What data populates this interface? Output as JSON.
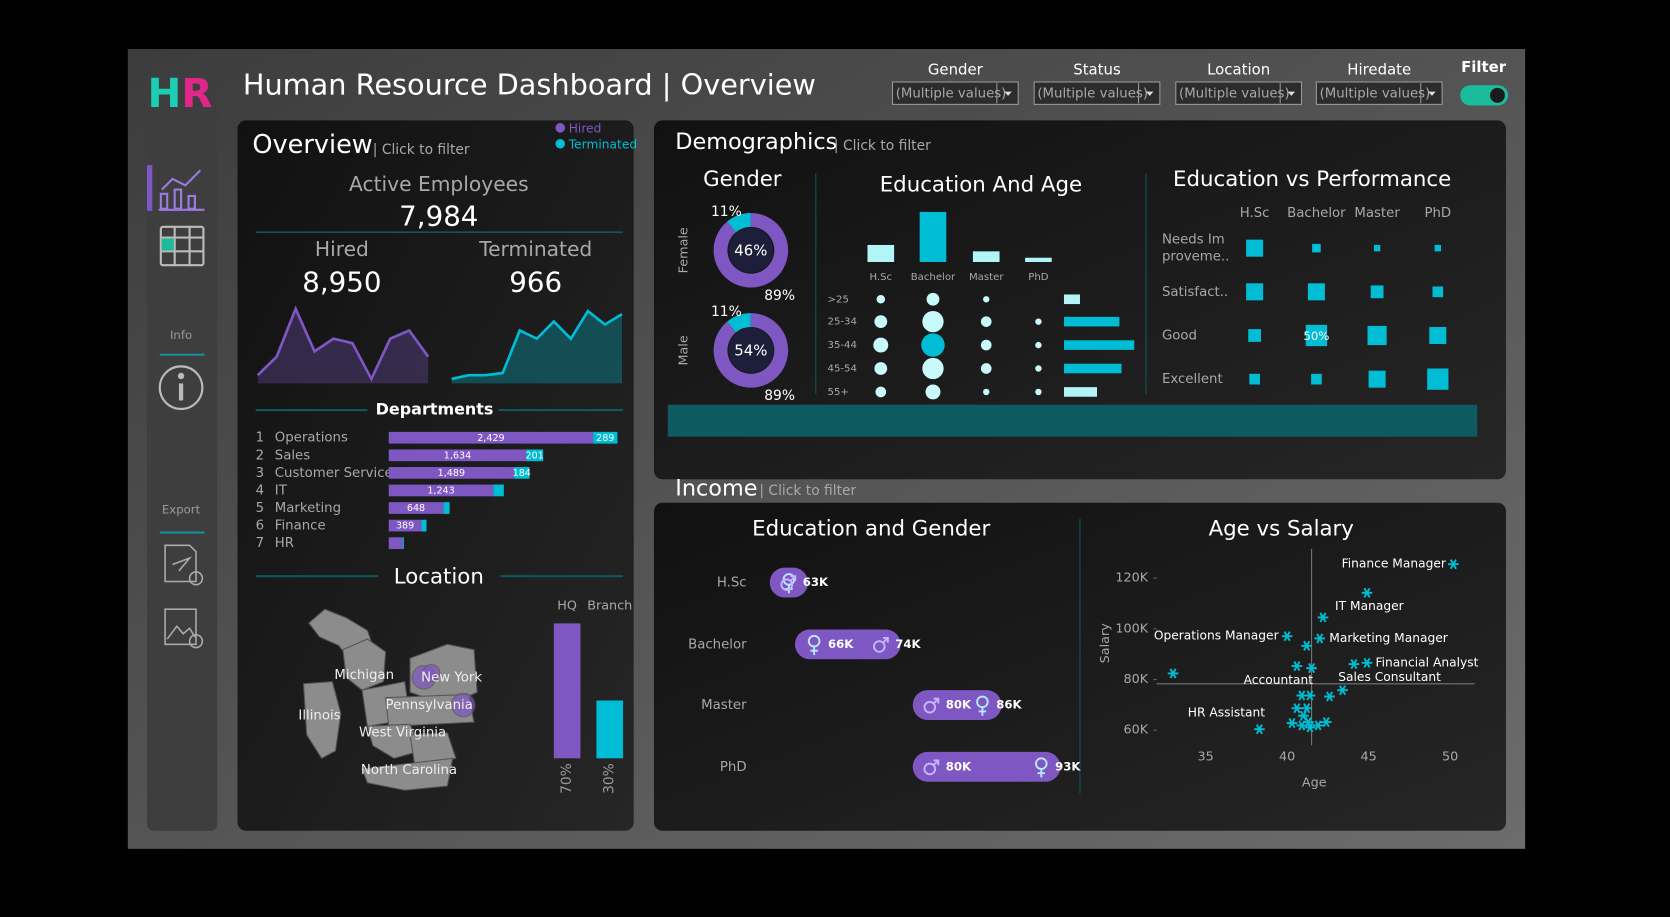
{
  "header": {
    "logo": "HR",
    "title": "Human Resource Dashboard | Overview",
    "filters": [
      {
        "label": "Gender",
        "value": "(Multiple values)"
      },
      {
        "label": "Status",
        "value": "(Multiple values)"
      },
      {
        "label": "Location",
        "value": "(Multiple values)"
      },
      {
        "label": "Hiredate",
        "value": "(Multiple values)"
      }
    ],
    "toggle_label": "Filter"
  },
  "sidebar": {
    "info_label": "Info",
    "export_label": "Export"
  },
  "overview": {
    "title": "Overview",
    "hint": "| Click to filter",
    "active_label": "Active Employees",
    "active_value": "7,984",
    "hired_label": "Hired",
    "hired_value": "8,950",
    "terminated_label": "Terminated",
    "terminated_value": "966",
    "trends": {
      "type": "area",
      "ylim": [
        0,
        10
      ],
      "hired": [
        1.1,
        3.6,
        10,
        4.3,
        6,
        5.4,
        0.6,
        6,
        7.1,
        3.6
      ],
      "terminated": [
        0.6,
        1.1,
        1.1,
        1.4,
        7.1,
        6,
        8.3,
        6,
        9.7,
        7.9,
        9.3
      ]
    },
    "departments": {
      "type": "bar",
      "title": "Departments",
      "ranks": [
        1,
        2,
        3,
        4,
        5,
        6,
        7
      ],
      "categories": [
        "Operations",
        "Sales",
        "Customer Service",
        "IT",
        "Marketing",
        "Finance",
        "HR"
      ],
      "xlim": [
        0,
        3000
      ],
      "series": [
        {
          "name": "Hired",
          "color": "#7e57c2",
          "values": [
            2429,
            1634,
            1489,
            1243,
            648,
            389,
            165
          ],
          "value_labels": [
            "2,429",
            "1,634",
            "1,489",
            "1,243",
            "648",
            "389",
            null
          ]
        },
        {
          "name": "Terminated",
          "color": "#00bcd4",
          "values": [
            289,
            201,
            184,
            125,
            75,
            60,
            15
          ],
          "value_labels": [
            "289",
            "201",
            "184",
            null,
            null,
            null,
            null
          ]
        }
      ]
    },
    "location": {
      "title": "Location",
      "states": [
        "Michigan",
        "New York",
        "Pennsylvania",
        "Illinois",
        "West Virginia",
        "North Carolina"
      ],
      "split": {
        "type": "bar",
        "categories": [
          "HQ",
          "Branch"
        ],
        "values": [
          70,
          30
        ],
        "value_labels": [
          "70%",
          "30%"
        ],
        "ylim": [
          0,
          100
        ],
        "colors": [
          "#7e57c2",
          "#00bcd4"
        ]
      }
    }
  },
  "demographics": {
    "title": "Demographics",
    "hint": "| Click to filter",
    "gender": {
      "type": "donut",
      "title": "Gender",
      "categories": [
        "Female",
        "Male"
      ],
      "share": [
        46,
        54
      ],
      "share_labels": [
        "46%",
        "54%"
      ],
      "terminated_share": [
        11,
        11
      ],
      "terminated_labels": [
        "11%",
        "11%"
      ],
      "hired_share": [
        89,
        89
      ],
      "hired_labels": [
        "89%",
        "89%"
      ]
    },
    "education_age": {
      "type": "bubble",
      "title": "Education And Age",
      "education": [
        "H.Sc",
        "Bachelor",
        "Master",
        "PhD"
      ],
      "education_values": [
        160,
        470,
        100,
        40
      ],
      "age_groups": [
        ">25",
        "25-34",
        "35-44",
        "45-54",
        "55+"
      ],
      "age_values": [
        15,
        52,
        66,
        54,
        31
      ],
      "matrix": [
        [
          16,
          36,
          9,
          0
        ],
        [
          36,
          100,
          25,
          9
        ],
        [
          49,
          121,
          25,
          9
        ],
        [
          36,
          100,
          25,
          9
        ],
        [
          25,
          49,
          9,
          9
        ]
      ]
    },
    "performance": {
      "type": "heatmap",
      "title": "Education vs Performance",
      "columns": [
        "H.Sc",
        "Bachelor",
        "Master",
        "PhD"
      ],
      "rows": [
        {
          "lines": [
            "Needs Im",
            "proveme.."
          ],
          "values": [
            40,
            20,
            15,
            15
          ],
          "value_labels": [
            null,
            null,
            null,
            null
          ]
        },
        {
          "lines": [
            "Satisfact.."
          ],
          "values": [
            40,
            40,
            30,
            25
          ],
          "value_labels": [
            null,
            null,
            null,
            null
          ]
        },
        {
          "lines": [
            "Good"
          ],
          "values": [
            30,
            50,
            45,
            40
          ],
          "value_labels": [
            null,
            "50%",
            null,
            null
          ]
        },
        {
          "lines": [
            "Excellent"
          ],
          "values": [
            25,
            25,
            40,
            50
          ],
          "value_labels": [
            null,
            null,
            null,
            null
          ]
        }
      ]
    }
  },
  "income": {
    "title": "Income",
    "hint": "| Click to filter",
    "education_gender": {
      "type": "dumbbell",
      "title": "Education and Gender",
      "categories": [
        "H.Sc",
        "Bachelor",
        "Master",
        "PhD"
      ],
      "xlim": [
        55,
        100
      ],
      "female": {
        "values": [
          63,
          66,
          86,
          93
        ],
        "value_labels": [
          null,
          "66K",
          "86K",
          "93K"
        ]
      },
      "male": {
        "values": [
          63,
          74,
          80,
          80
        ],
        "value_labels": [
          "63K",
          "74K",
          "80K",
          "80K"
        ]
      }
    },
    "age_salary": {
      "type": "scatter",
      "title": "Age vs Salary",
      "xlabel": "Age",
      "ylabel": "Salary",
      "color": "#00bcd4",
      "xlim": [
        32,
        51.5
      ],
      "ylim": [
        54000,
        129000
      ],
      "xticks": [
        35,
        40,
        45,
        50
      ],
      "yticks": [
        {
          "value": 60000,
          "label": "60K"
        },
        {
          "value": 80000,
          "label": "80K"
        },
        {
          "value": 100000,
          "label": "100K"
        },
        {
          "value": 120000,
          "label": "120K"
        }
      ],
      "reference_x": 41.5,
      "reference_y": 78300,
      "x": [
        50.2,
        44.9,
        42.2,
        40.0,
        42.0,
        41.2,
        33.0,
        40.6,
        41.5,
        44.1,
        44.9,
        43.4,
        42.6,
        40.9,
        41.4,
        40.6,
        41.2,
        41.0,
        41.3,
        40.3,
        40.9,
        41.4,
        41.9,
        42.4,
        38.3
      ],
      "y": [
        125500,
        114200,
        104500,
        97100,
        96200,
        93300,
        82400,
        85300,
        84500,
        86100,
        86600,
        75800,
        73300,
        73700,
        73700,
        68700,
        68700,
        65700,
        63200,
        62800,
        61900,
        61100,
        61900,
        63200,
        60400
      ],
      "labels": [
        "Finance Manager",
        "IT Manager",
        null,
        "Operations Manager",
        "Marketing Manager",
        null,
        null,
        null,
        null,
        null,
        "Financial Analyst",
        "Sales Consultant",
        null,
        "Accountant",
        null,
        null,
        null,
        null,
        null,
        null,
        null,
        null,
        null,
        null,
        "HR Assistant"
      ]
    }
  }
}
